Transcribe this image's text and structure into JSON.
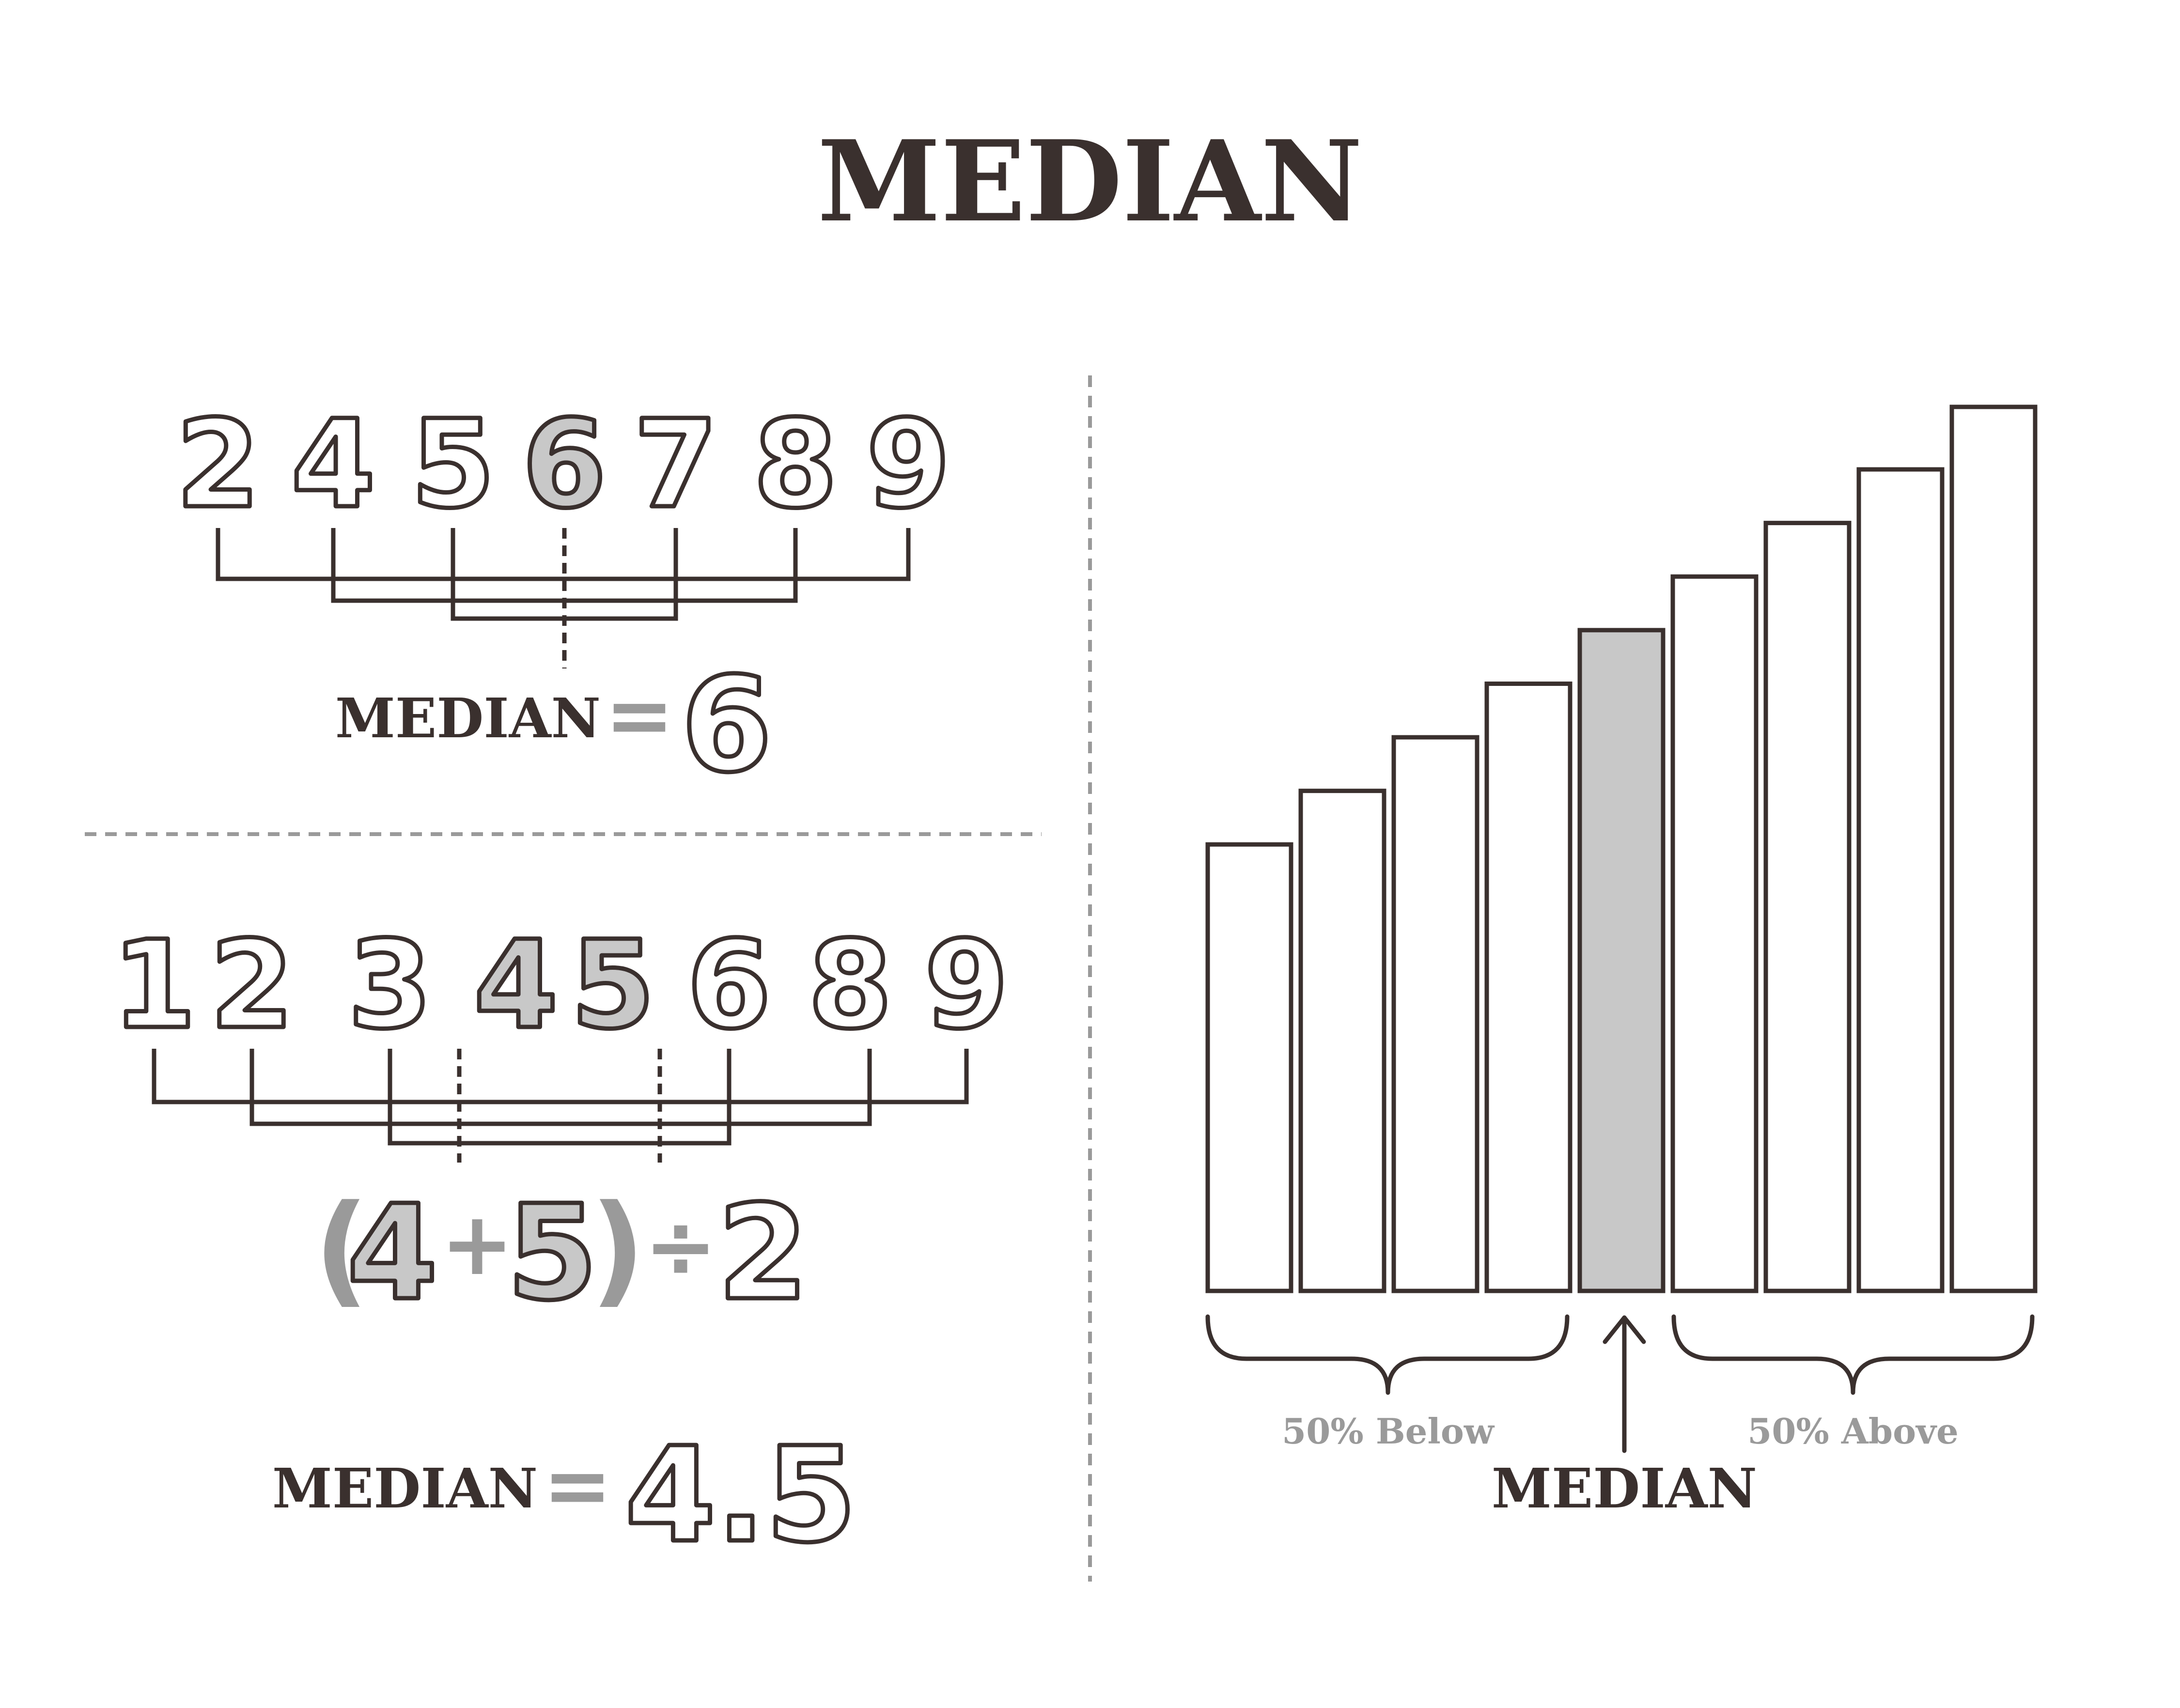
{
  "title": "MEDIAN",
  "colors": {
    "ink": "#3a302e",
    "highlight": "#c8c8c8",
    "muted": "#9a9a9a",
    "divider": "#9a9a9a"
  },
  "example_odd": {
    "numbers": [
      "2",
      "4",
      "5",
      "6",
      "7",
      "8",
      "9"
    ],
    "median_index": 3,
    "result_label": "MEDIAN",
    "equals": "=",
    "result_value": "6"
  },
  "example_even": {
    "numbers": [
      "1",
      "2",
      "3",
      "4",
      "5",
      "6",
      "8",
      "9"
    ],
    "median_indices": [
      3,
      4
    ],
    "formula": {
      "open_paren": "(",
      "a": "4",
      "plus": "+",
      "b": "5",
      "close_paren": ")",
      "divide": "÷",
      "divisor": "2"
    },
    "result_label": "MEDIAN",
    "equals": "=",
    "result_value": "4.5"
  },
  "bar_chart": {
    "bar_count": 9,
    "values": [
      5,
      5.6,
      6.2,
      6.8,
      7.4,
      8,
      8.6,
      9.2,
      9.9
    ],
    "median_index": 4,
    "below_label": "50% Below",
    "above_label": "50% Above",
    "median_label": "MEDIAN"
  }
}
